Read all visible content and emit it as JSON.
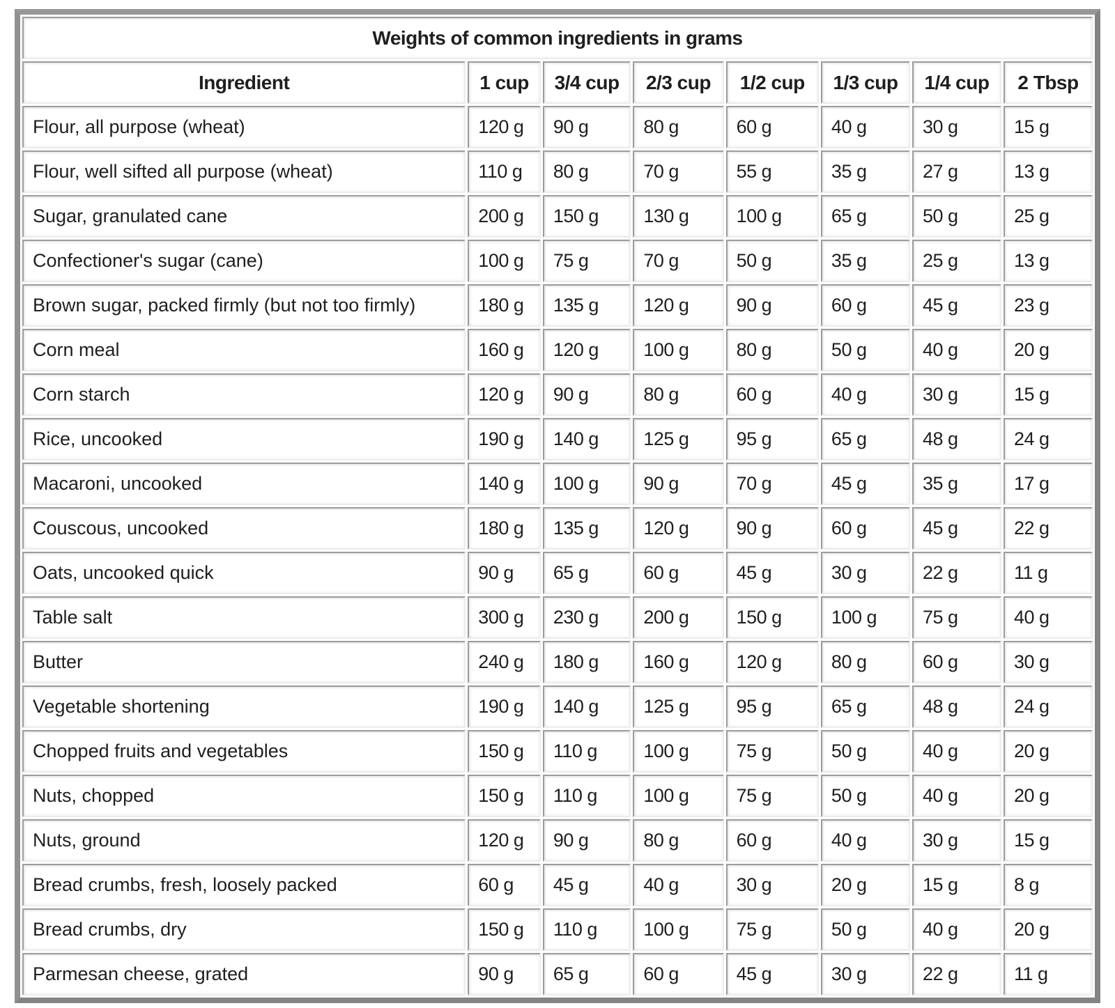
{
  "chart_data": {
    "type": "table",
    "title": "Weights of common ingredients in grams",
    "columns": [
      "Ingredient",
      "1 cup",
      "3/4 cup",
      "2/3 cup",
      "1/2 cup",
      "1/3 cup",
      "1/4 cup",
      "2 Tbsp"
    ],
    "rows": [
      [
        "Flour, all purpose (wheat)",
        "120 g",
        "90 g",
        "80 g",
        "60 g",
        "40 g",
        "30 g",
        "15 g"
      ],
      [
        "Flour, well sifted all purpose (wheat)",
        "110 g",
        "80 g",
        "70 g",
        "55 g",
        "35 g",
        "27 g",
        "13 g"
      ],
      [
        "Sugar, granulated cane",
        "200 g",
        "150 g",
        "130 g",
        "100 g",
        "65 g",
        "50 g",
        "25 g"
      ],
      [
        "Confectioner's sugar (cane)",
        "100 g",
        "75 g",
        "70 g",
        "50 g",
        "35 g",
        "25 g",
        "13 g"
      ],
      [
        "Brown sugar, packed firmly (but not too firmly)",
        "180 g",
        "135 g",
        "120 g",
        "90 g",
        "60 g",
        "45 g",
        "23 g"
      ],
      [
        "Corn meal",
        "160 g",
        "120 g",
        "100 g",
        "80 g",
        "50 g",
        "40 g",
        "20 g"
      ],
      [
        "Corn starch",
        "120 g",
        "90 g",
        "80 g",
        "60 g",
        "40 g",
        "30 g",
        "15 g"
      ],
      [
        "Rice, uncooked",
        "190 g",
        "140 g",
        "125 g",
        "95 g",
        "65 g",
        "48 g",
        "24 g"
      ],
      [
        "Macaroni, uncooked",
        "140 g",
        "100 g",
        "90 g",
        "70 g",
        "45 g",
        "35 g",
        "17 g"
      ],
      [
        "Couscous, uncooked",
        "180 g",
        "135 g",
        "120 g",
        "90 g",
        "60 g",
        "45 g",
        "22 g"
      ],
      [
        "Oats, uncooked quick",
        "90 g",
        "65 g",
        "60 g",
        "45 g",
        "30 g",
        "22 g",
        "11 g"
      ],
      [
        "Table salt",
        "300 g",
        "230 g",
        "200 g",
        "150 g",
        "100 g",
        "75 g",
        "40 g"
      ],
      [
        "Butter",
        "240 g",
        "180 g",
        "160 g",
        "120 g",
        "80 g",
        "60 g",
        "30 g"
      ],
      [
        "Vegetable shortening",
        "190 g",
        "140 g",
        "125 g",
        "95 g",
        "65 g",
        "48 g",
        "24 g"
      ],
      [
        "Chopped fruits and vegetables",
        "150 g",
        "110 g",
        "100 g",
        "75 g",
        "50 g",
        "40 g",
        "20 g"
      ],
      [
        "Nuts, chopped",
        "150 g",
        "110 g",
        "100 g",
        "75 g",
        "50 g",
        "40 g",
        "20 g"
      ],
      [
        "Nuts, ground",
        "120 g",
        "90 g",
        "80 g",
        "60 g",
        "40 g",
        "30 g",
        "15 g"
      ],
      [
        "Bread crumbs, fresh, loosely packed",
        "60 g",
        "45 g",
        "40 g",
        "30 g",
        "20 g",
        "15 g",
        "8 g"
      ],
      [
        "Bread crumbs, dry",
        "150 g",
        "110 g",
        "100 g",
        "75 g",
        "50 g",
        "40 g",
        "20 g"
      ],
      [
        "Parmesan cheese, grated",
        "90 g",
        "65 g",
        "60 g",
        "45 g",
        "30 g",
        "22 g",
        "11 g"
      ]
    ],
    "layout": {
      "title_row_spans_all_columns": true,
      "header_row_bold": true,
      "value_alignment": "left",
      "header_alignment": "center"
    }
  },
  "colors": {
    "outer_border": "#8a8a8a",
    "cell_border_dark": "#9c9c9c",
    "cell_border_light": "#ececec",
    "background": "#ffffff",
    "text": "#1f1f1f"
  }
}
